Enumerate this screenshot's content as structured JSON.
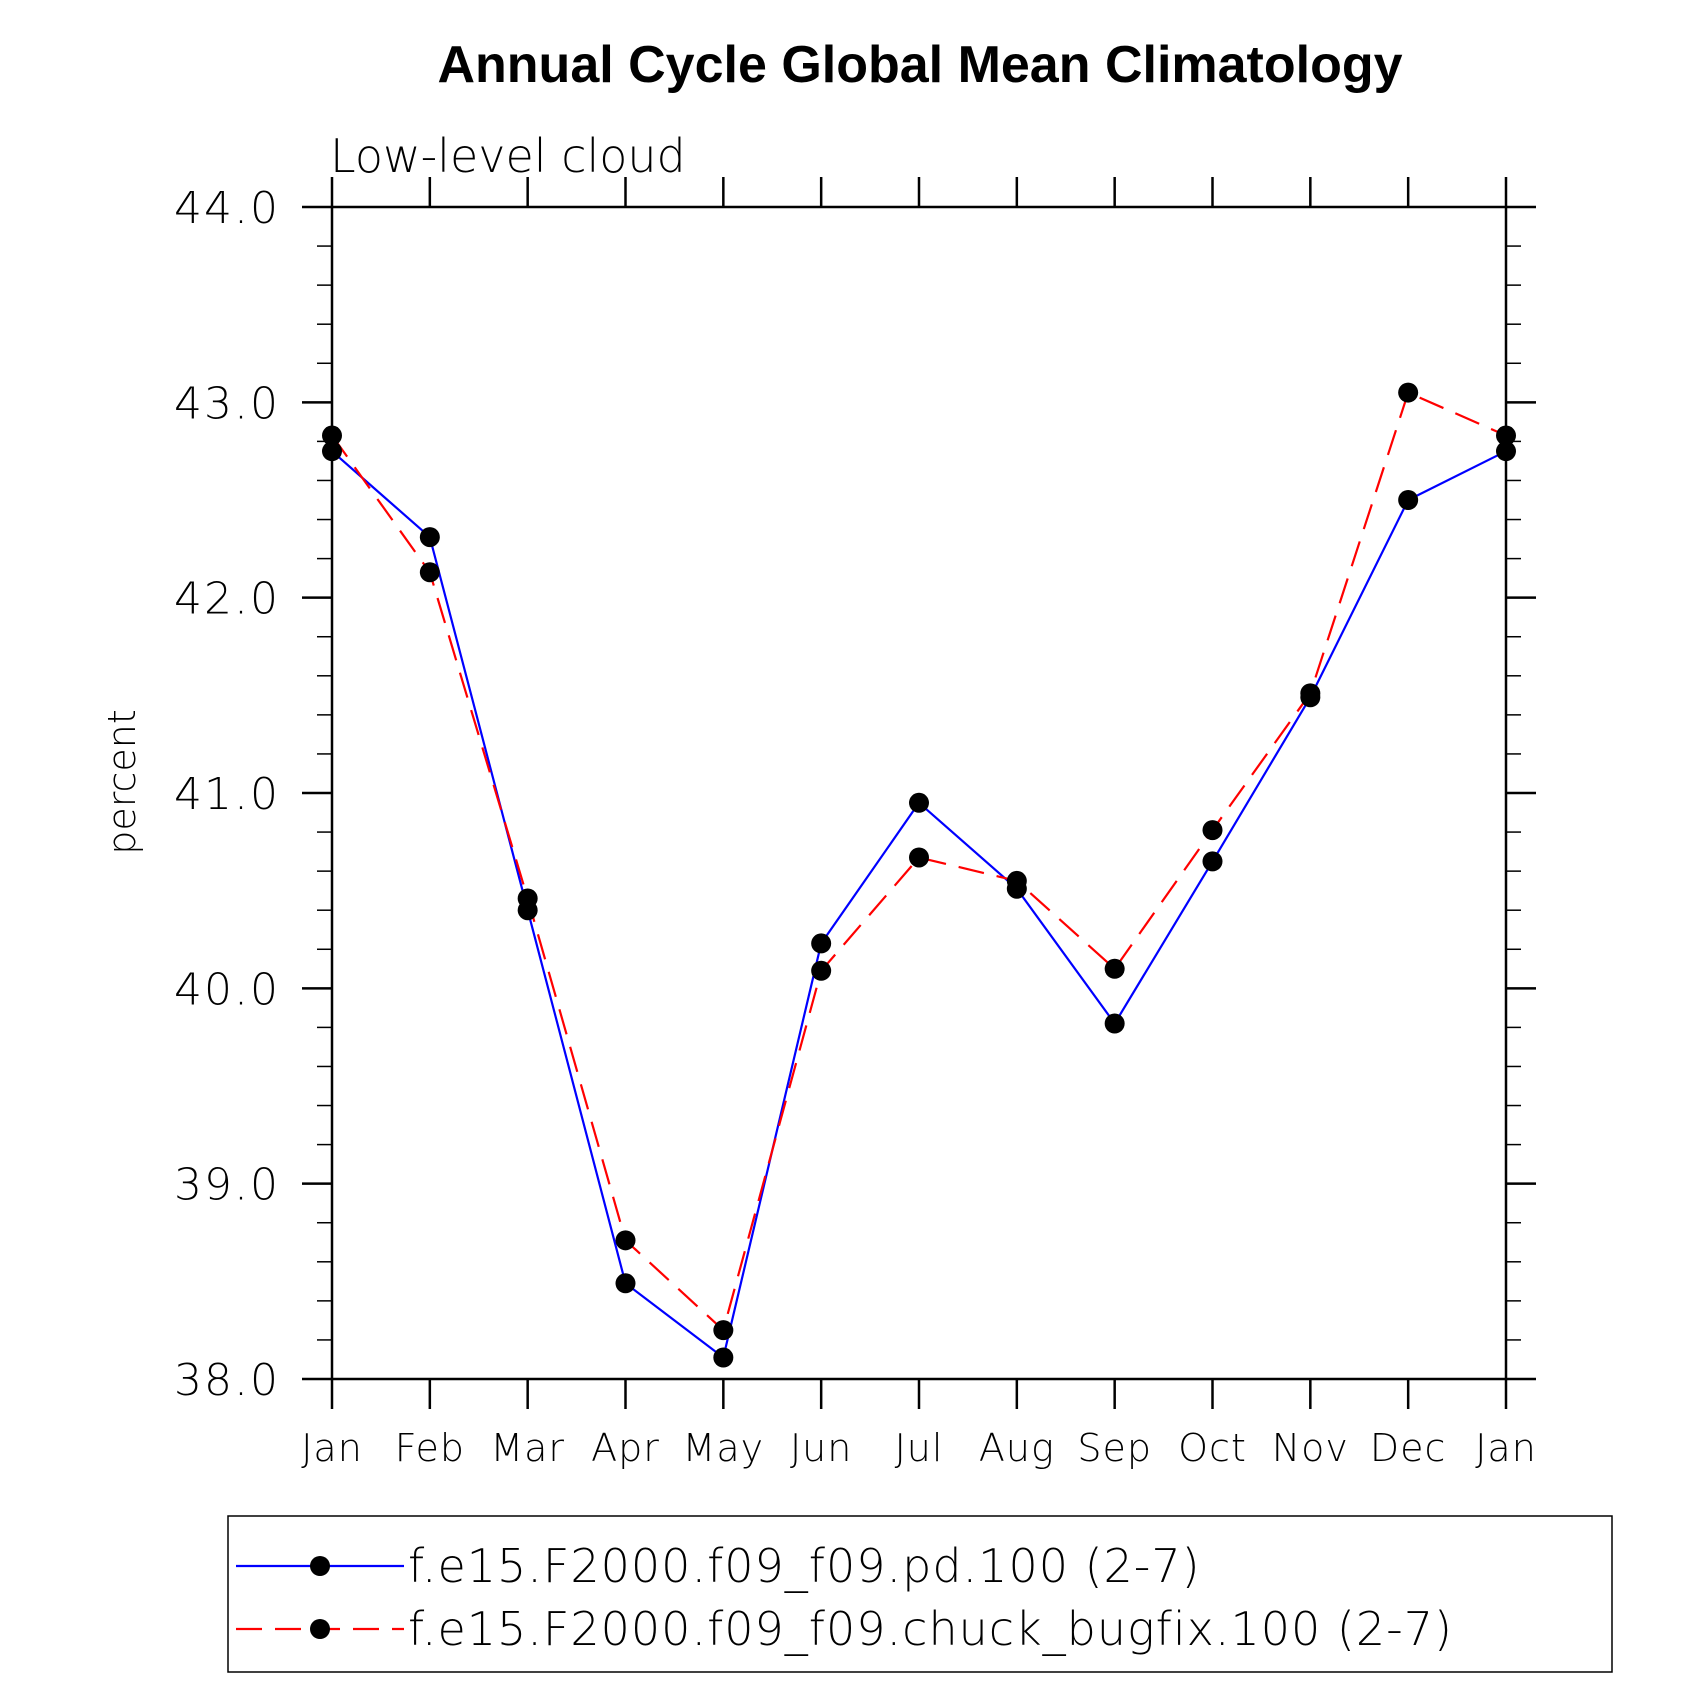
{
  "chart_data": {
    "type": "line",
    "title": "Annual Cycle Global Mean Climatology",
    "subtitle": "Low-level cloud",
    "ylabel": "percent",
    "xlabel": "",
    "categories": [
      "Jan",
      "Feb",
      "Mar",
      "Apr",
      "May",
      "Jun",
      "Jul",
      "Aug",
      "Sep",
      "Oct",
      "Nov",
      "Dec",
      "Jan"
    ],
    "ylim": [
      38.0,
      44.0
    ],
    "yticks": [
      "38.0",
      "39.0",
      "40.0",
      "41.0",
      "42.0",
      "43.0",
      "44.0"
    ],
    "grid": false,
    "legend_position": "bottom",
    "series": [
      {
        "name": "f.e15.F2000.f09_f09.pd.100 (2-7)",
        "color": "#0000ff",
        "dash": "solid",
        "marker": "filled-circle",
        "values": [
          42.75,
          42.31,
          40.4,
          38.49,
          38.11,
          40.23,
          40.95,
          40.51,
          39.82,
          40.65,
          41.49,
          42.5,
          42.75
        ]
      },
      {
        "name": "f.e15.F2000.f09_f09.chuck_bugfix.100 (2-7)",
        "color": "#ff0000",
        "dash": "dashed",
        "marker": "filled-circle",
        "values": [
          42.83,
          42.13,
          40.46,
          38.71,
          38.25,
          40.09,
          40.67,
          40.55,
          40.1,
          40.81,
          41.51,
          43.05,
          42.83
        ]
      }
    ]
  }
}
